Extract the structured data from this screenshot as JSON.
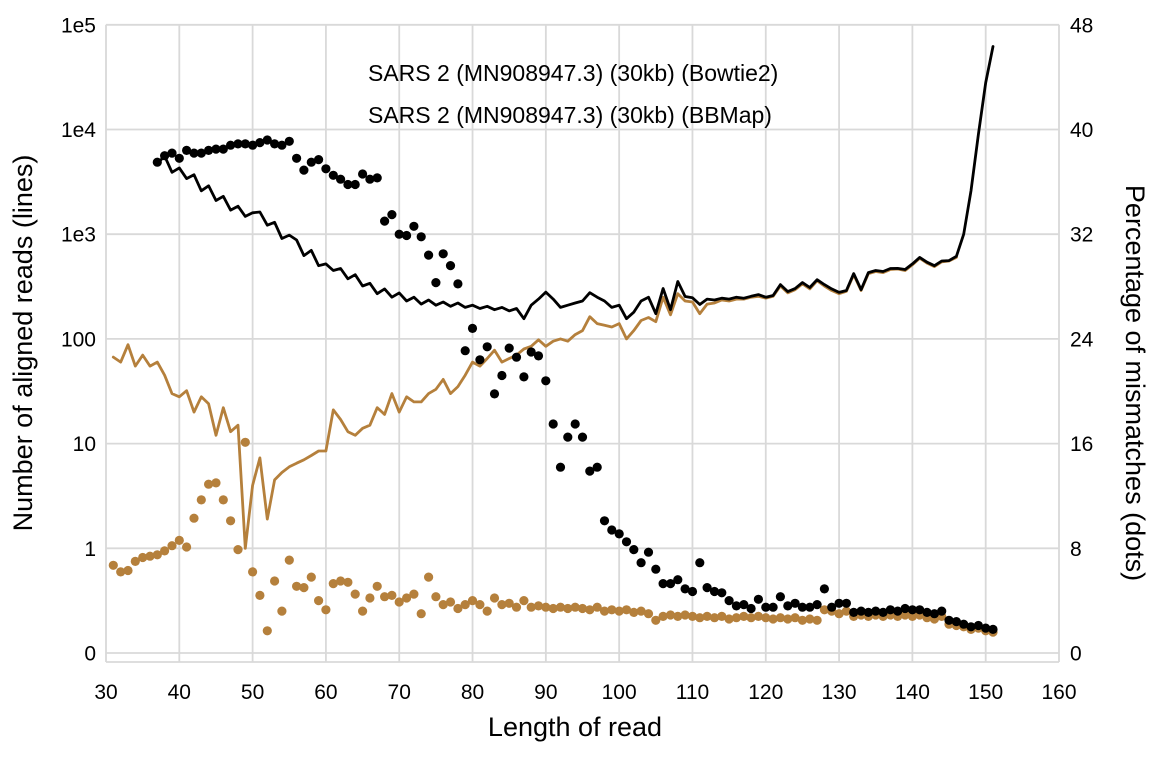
{
  "figure": {
    "background": "#ffffff",
    "grid_color": "#d9d9d9",
    "text_color": "#000000",
    "xlabel": "Length of read",
    "ylabel_left": "Number of aligned reads (lines)",
    "ylabel_right": "Percentage of mismatches (dots)",
    "legend": {
      "entries": [
        {
          "label": "SARS 2 (MN908947.3) (30kb) (Bowtie2)",
          "color": "#b5803c"
        },
        {
          "label": "SARS 2 (MN908947.3) (30kb) (BBMap)",
          "color": "#000000"
        }
      ]
    }
  },
  "chart_data": {
    "type": "line+scatter",
    "title": "",
    "xlabel": "Length of read",
    "ylabel_left": "Number of aligned reads (lines)",
    "ylabel_right": "Percentage of mismatches (dots)",
    "grid": true,
    "legend_position": "top-center-inside",
    "x_axis": {
      "min": 30,
      "max": 160,
      "tick_step": 10,
      "ticks": [
        30,
        40,
        50,
        60,
        70,
        80,
        90,
        100,
        110,
        120,
        130,
        140,
        150,
        160
      ]
    },
    "y_axis_left": {
      "scale": "symlog",
      "tick_labels": [
        "1e5",
        "1e4",
        "1e3",
        "100",
        "10",
        "1",
        "0"
      ],
      "tick_values": [
        100000,
        10000,
        1000,
        100,
        10,
        1,
        0
      ]
    },
    "y_axis_right": {
      "min": 0,
      "max": 48,
      "tick_step": 8,
      "ticks": [
        48,
        40,
        32,
        24,
        16,
        8,
        0
      ]
    },
    "series": [
      {
        "name": "SARS 2 (MN908947.3) (30kb) (Bowtie2)",
        "component": "line",
        "type": "line",
        "axis": "left",
        "color": "#b5803c",
        "x_start": 31,
        "x_step": 1,
        "values": [
          67,
          60,
          88,
          55,
          70,
          55,
          60,
          45,
          30,
          28,
          32,
          20,
          28,
          24,
          12,
          22,
          13,
          15,
          1,
          4,
          7.3,
          1.9,
          4.5,
          5.3,
          6,
          6.5,
          7,
          7.7,
          8.5,
          8.5,
          21,
          17,
          13,
          12,
          14,
          15,
          22,
          19,
          30,
          20,
          28,
          25,
          25,
          30,
          33,
          41,
          30,
          35,
          45,
          60,
          55,
          65,
          78,
          60,
          65,
          70,
          80,
          85,
          98,
          85,
          95,
          100,
          95,
          110,
          120,
          163,
          140,
          135,
          130,
          140,
          100,
          120,
          150,
          160,
          146,
          250,
          170,
          270,
          230,
          225,
          174,
          215,
          220,
          235,
          230,
          240,
          240,
          250,
          255,
          245,
          255,
          320,
          275,
          295,
          335,
          300,
          360,
          320,
          290,
          270,
          285,
          410,
          290,
          420,
          440,
          430,
          460,
          465,
          450,
          510,
          590,
          530,
          490,
          545,
          555,
          600
        ]
      },
      {
        "name": "SARS 2 (MN908947.3) (30kb) (BBMap)",
        "component": "line",
        "type": "line",
        "axis": "left",
        "color": "#000000",
        "x_start": 37,
        "x_step": 1,
        "values": [
          4700,
          5600,
          3900,
          4300,
          3400,
          3700,
          2600,
          2900,
          2100,
          2300,
          1700,
          1850,
          1480,
          1600,
          1630,
          1220,
          1300,
          910,
          980,
          880,
          625,
          700,
          500,
          520,
          450,
          470,
          375,
          410,
          320,
          340,
          270,
          300,
          250,
          275,
          230,
          250,
          215,
          235,
          210,
          225,
          205,
          220,
          200,
          210,
          195,
          205,
          190,
          200,
          185,
          195,
          156,
          210,
          240,
          280,
          240,
          200,
          210,
          220,
          230,
          276,
          250,
          230,
          200,
          210,
          156,
          180,
          230,
          250,
          174,
          303,
          190,
          353,
          254,
          247,
          213,
          240,
          235,
          245,
          240,
          250,
          245,
          255,
          265,
          250,
          260,
          330,
          283,
          302,
          345,
          310,
          368,
          330,
          300,
          278,
          290,
          420,
          295,
          430,
          450,
          440,
          470,
          471,
          460,
          520,
          600,
          540,
          500,
          555,
          560,
          615,
          1000,
          2600,
          9000,
          28000,
          62000
        ]
      },
      {
        "name": "SARS 2 (MN908947.3) (30kb) (Bowtie2)",
        "component": "dots",
        "type": "scatter",
        "axis": "right",
        "color": "#b5803c",
        "x_start": 31,
        "x_step": 1,
        "values": [
          6.7,
          6.2,
          6.3,
          7.0,
          7.3,
          7.4,
          7.5,
          7.8,
          8.2,
          8.6,
          8.1,
          10.3,
          11.7,
          12.9,
          13.0,
          11.7,
          10.1,
          7.9,
          16.1,
          6.2,
          4.4,
          1.7,
          5.5,
          3.2,
          7.1,
          5.1,
          5.0,
          5.8,
          4.0,
          3.3,
          5.3,
          5.5,
          5.4,
          4.5,
          3.2,
          4.2,
          5.1,
          4.3,
          4.4,
          3.9,
          4.2,
          4.5,
          3.0,
          5.8,
          4.3,
          3.7,
          3.9,
          3.4,
          3.7,
          4.0,
          3.7,
          3.2,
          4.2,
          3.7,
          3.8,
          3.5,
          4.0,
          3.5,
          3.6,
          3.5,
          3.4,
          3.5,
          3.4,
          3.5,
          3.4,
          3.3,
          3.5,
          3.2,
          3.3,
          3.2,
          3.3,
          3.1,
          3.2,
          3.0,
          2.5,
          2.8,
          2.9,
          2.8,
          2.9,
          2.8,
          2.7,
          2.8,
          2.7,
          2.8,
          2.6,
          2.7,
          2.8,
          2.7,
          2.8,
          2.7,
          2.6,
          2.7,
          2.6,
          2.7,
          2.5,
          2.6,
          2.5,
          3.3,
          3.2,
          3.0,
          3.2,
          2.8,
          2.9,
          2.8,
          2.9,
          2.8,
          2.9,
          2.8,
          2.9,
          2.8,
          2.9,
          2.7,
          2.6,
          2.8,
          2.2,
          2.1,
          2.0,
          1.8,
          1.9,
          1.7,
          1.6
        ]
      },
      {
        "name": "SARS 2 (MN908947.3) (30kb) (BBMap)",
        "component": "dots",
        "type": "scatter",
        "axis": "right",
        "color": "#000000",
        "x_start": 37,
        "x_step": 1,
        "values": [
          37.5,
          38.0,
          38.2,
          37.8,
          38.4,
          38.2,
          38.2,
          38.4,
          38.5,
          38.5,
          38.8,
          38.9,
          38.9,
          38.8,
          39.0,
          39.2,
          38.9,
          38.8,
          39.1,
          37.8,
          36.9,
          37.5,
          37.7,
          37.0,
          36.5,
          36.2,
          35.8,
          35.8,
          36.6,
          36.2,
          36.3,
          33.0,
          33.5,
          32.0,
          31.9,
          32.6,
          31.8,
          30.4,
          28.3,
          30.5,
          29.6,
          28.2,
          23.1,
          24.8,
          22.4,
          23.4,
          19.8,
          21.2,
          23.3,
          22.6,
          21.1,
          23.0,
          22.7,
          20.8,
          17.5,
          14.2,
          16.5,
          17.5,
          16.5,
          13.9,
          14.2,
          10.1,
          9.4,
          9.1,
          8.5,
          7.9,
          6.9,
          7.7,
          6.4,
          5.3,
          5.3,
          5.6,
          4.9,
          4.7,
          6.9,
          5.0,
          4.7,
          4.6,
          4.0,
          3.6,
          3.7,
          3.4,
          4.1,
          3.5,
          3.5,
          4.3,
          3.6,
          3.8,
          3.5,
          3.5,
          3.7,
          4.9,
          3.5,
          3.8,
          3.8,
          3.1,
          3.2,
          3.1,
          3.2,
          3.1,
          3.3,
          3.2,
          3.4,
          3.3,
          3.3,
          3.1,
          3.0,
          3.2,
          2.5,
          2.4,
          2.2,
          2.0,
          2.1,
          1.9,
          1.8
        ]
      }
    ]
  }
}
